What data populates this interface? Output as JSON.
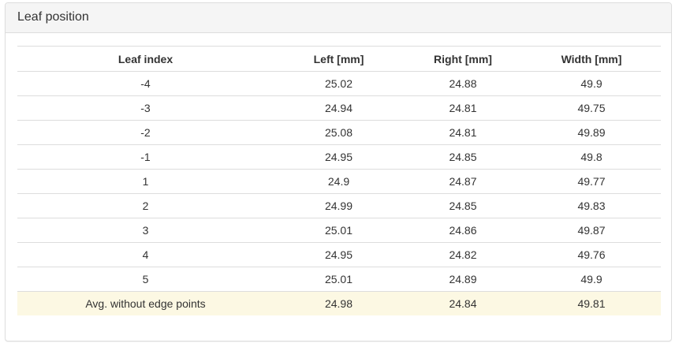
{
  "panel": {
    "title": "Leaf position"
  },
  "table": {
    "headers": [
      "Leaf index",
      "Left [mm]",
      "Right [mm]",
      "Width [mm]"
    ],
    "rows": [
      [
        "-4",
        "25.02",
        "24.88",
        "49.9"
      ],
      [
        "-3",
        "24.94",
        "24.81",
        "49.75"
      ],
      [
        "-2",
        "25.08",
        "24.81",
        "49.89"
      ],
      [
        "-1",
        "24.95",
        "24.85",
        "49.8"
      ],
      [
        "1",
        "24.9",
        "24.87",
        "49.77"
      ],
      [
        "2",
        "24.99",
        "24.85",
        "49.83"
      ],
      [
        "3",
        "25.01",
        "24.86",
        "49.87"
      ],
      [
        "4",
        "24.95",
        "24.82",
        "49.76"
      ],
      [
        "5",
        "25.01",
        "24.89",
        "49.9"
      ]
    ],
    "summary": [
      "Avg. without edge points",
      "24.98",
      "24.84",
      "49.81"
    ]
  },
  "colors": {
    "panel_heading_bg": "#f5f5f5",
    "border": "#dddddd",
    "summary_row_bg": "#fcf8e3",
    "text": "#333333"
  }
}
